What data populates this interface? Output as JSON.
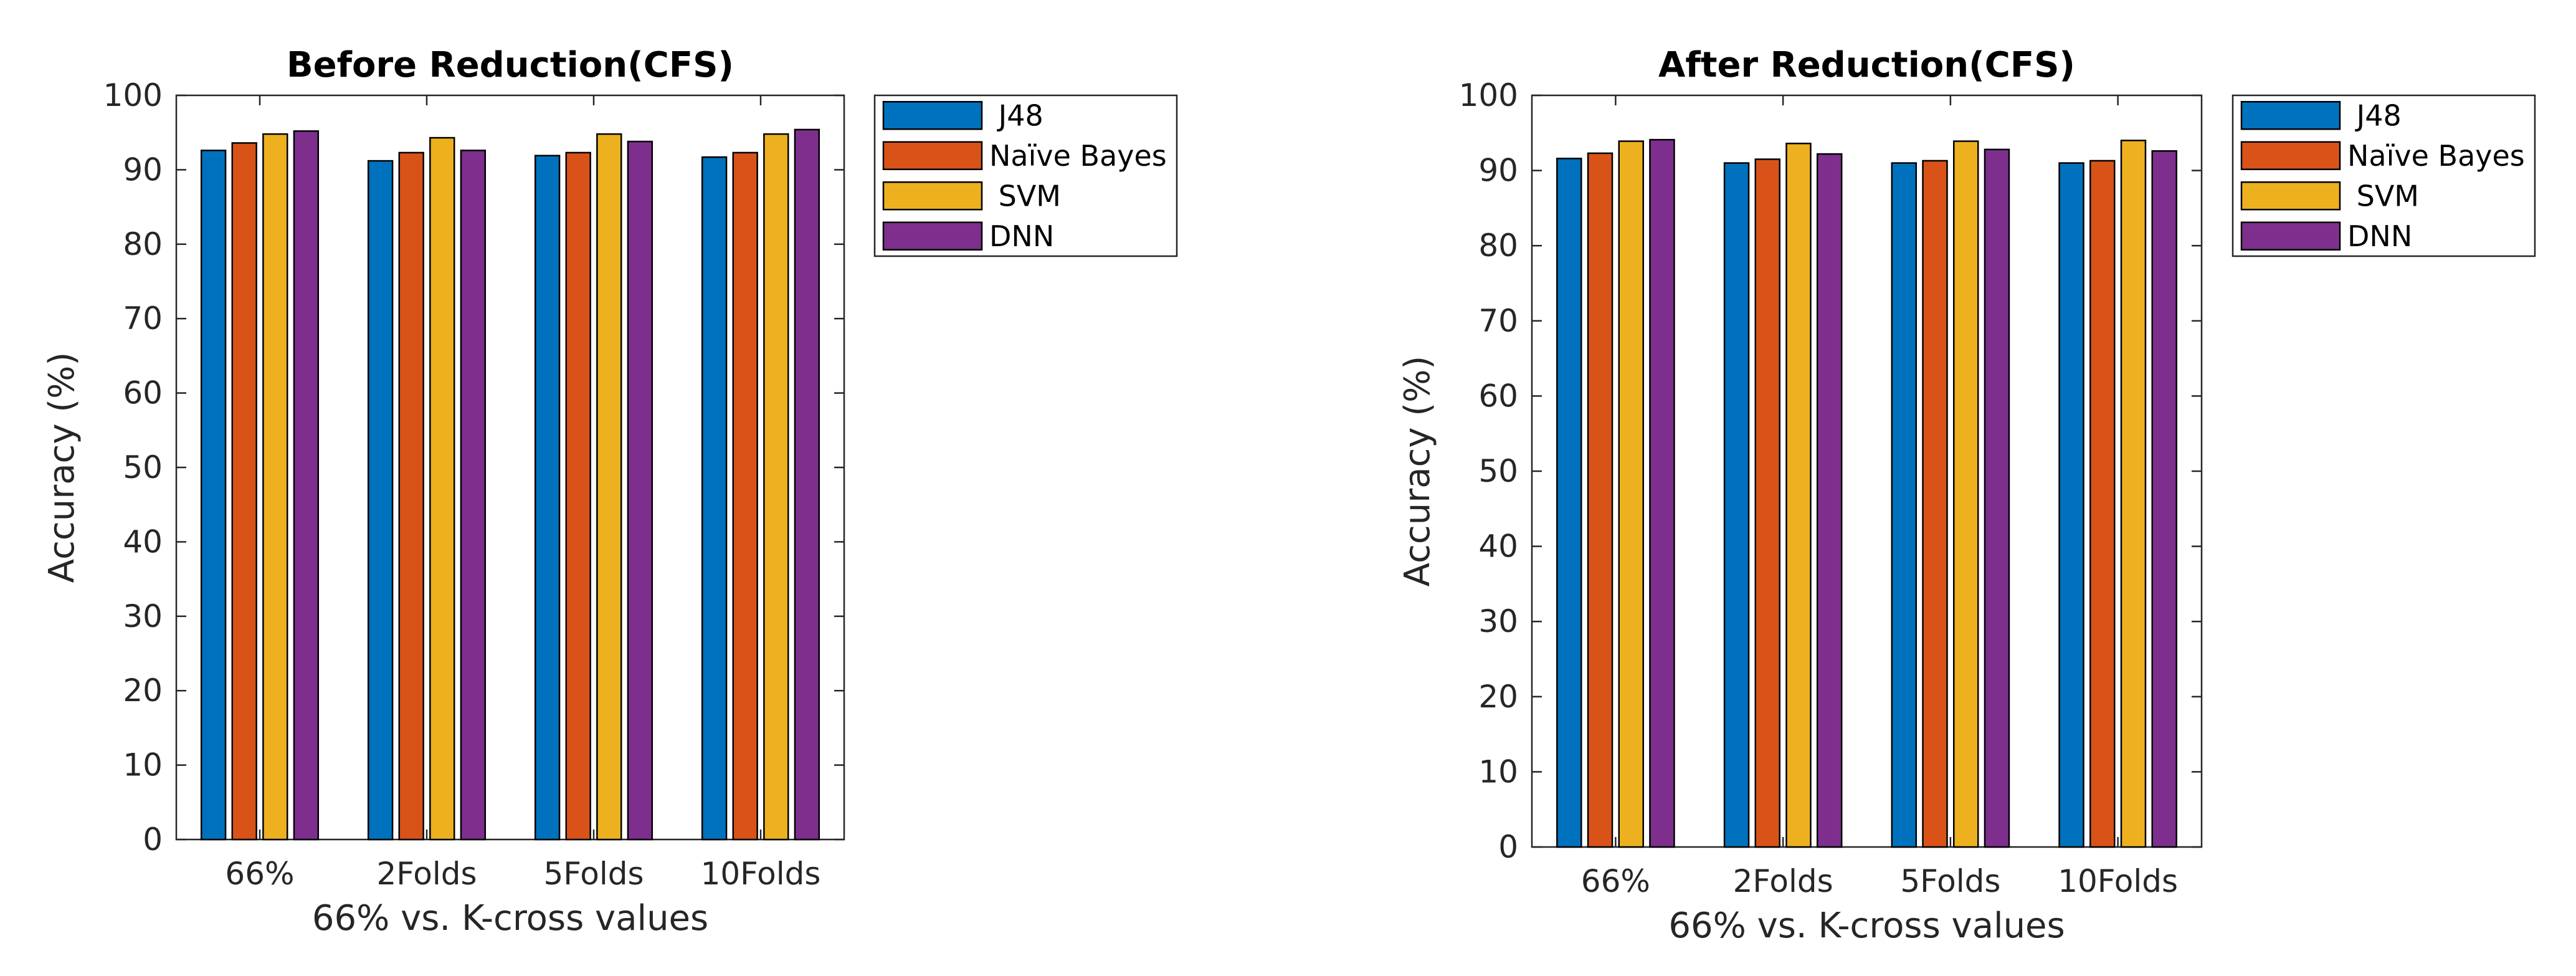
{
  "chart_data": [
    {
      "type": "bar",
      "title": "Before Reduction(CFS)",
      "xlabel": "66% vs. K-cross values",
      "ylabel": "Accuracy (%)",
      "ylim": [
        0,
        100
      ],
      "yticks": [
        0,
        10,
        20,
        30,
        40,
        50,
        60,
        70,
        80,
        90,
        100
      ],
      "grid": false,
      "legend_position": "outside-top-right",
      "categories": [
        "66%",
        "2Folds",
        "5Folds",
        "10Folds"
      ],
      "series": [
        {
          "name": "J48",
          "legend_label": " J48",
          "color": "#0072BD",
          "values": [
            92.6,
            91.2,
            91.9,
            91.7
          ]
        },
        {
          "name": "Naïve Bayes",
          "legend_label": "Naïve Bayes",
          "color": "#D95319",
          "values": [
            93.6,
            92.3,
            92.3,
            92.3
          ]
        },
        {
          "name": "SVM",
          "legend_label": " SVM",
          "color": "#EDB120",
          "values": [
            94.8,
            94.3,
            94.8,
            94.8
          ]
        },
        {
          "name": "DNN",
          "legend_label": "DNN",
          "color": "#7E2F8E",
          "values": [
            95.2,
            92.6,
            93.8,
            95.4
          ]
        }
      ]
    },
    {
      "type": "bar",
      "title": "After Reduction(CFS)",
      "xlabel": "66% vs. K-cross values",
      "ylabel": "Accuracy (%)",
      "ylim": [
        0,
        100
      ],
      "yticks": [
        0,
        10,
        20,
        30,
        40,
        50,
        60,
        70,
        80,
        90,
        100
      ],
      "grid": false,
      "legend_position": "outside-top-right",
      "categories": [
        "66%",
        "2Folds",
        "5Folds",
        "10Folds"
      ],
      "series": [
        {
          "name": "J48",
          "legend_label": " J48",
          "color": "#0072BD",
          "values": [
            91.6,
            91.0,
            91.0,
            91.0
          ]
        },
        {
          "name": "Naïve Bayes",
          "legend_label": "Naïve Bayes",
          "color": "#D95319",
          "values": [
            92.3,
            91.5,
            91.3,
            91.3
          ]
        },
        {
          "name": "SVM",
          "legend_label": " SVM",
          "color": "#EDB120",
          "values": [
            93.9,
            93.6,
            93.9,
            94.0
          ]
        },
        {
          "name": "DNN",
          "legend_label": "DNN",
          "color": "#7E2F8E",
          "values": [
            94.1,
            92.2,
            92.8,
            92.6
          ]
        }
      ]
    }
  ]
}
